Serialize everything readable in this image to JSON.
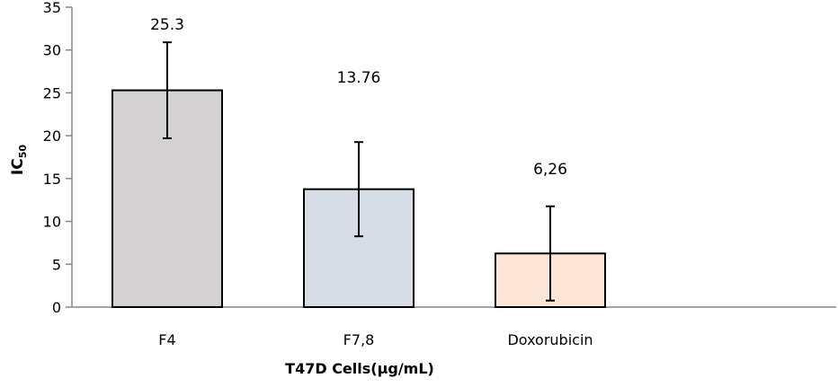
{
  "chart_data": {
    "type": "bar",
    "title": "",
    "xlabel": "T47D Cells(µg/mL)",
    "ylabel": "IC",
    "ylabel_subscript": "50",
    "categories": [
      "F4",
      "F7,8",
      "Doxorubicin"
    ],
    "values": [
      25.3,
      13.76,
      6.26
    ],
    "error": [
      5.6,
      5.5,
      5.5
    ],
    "data_labels": [
      "25.3",
      "13.76",
      "6,26"
    ],
    "bar_colors": [
      "#d3d1d2",
      "#d6dde7",
      "#fce4d6"
    ],
    "ylim": [
      0,
      35
    ],
    "yticks": [
      "0",
      "5",
      "10",
      "15",
      "20",
      "25",
      "30",
      "35"
    ],
    "grid": false,
    "legend": "none"
  }
}
